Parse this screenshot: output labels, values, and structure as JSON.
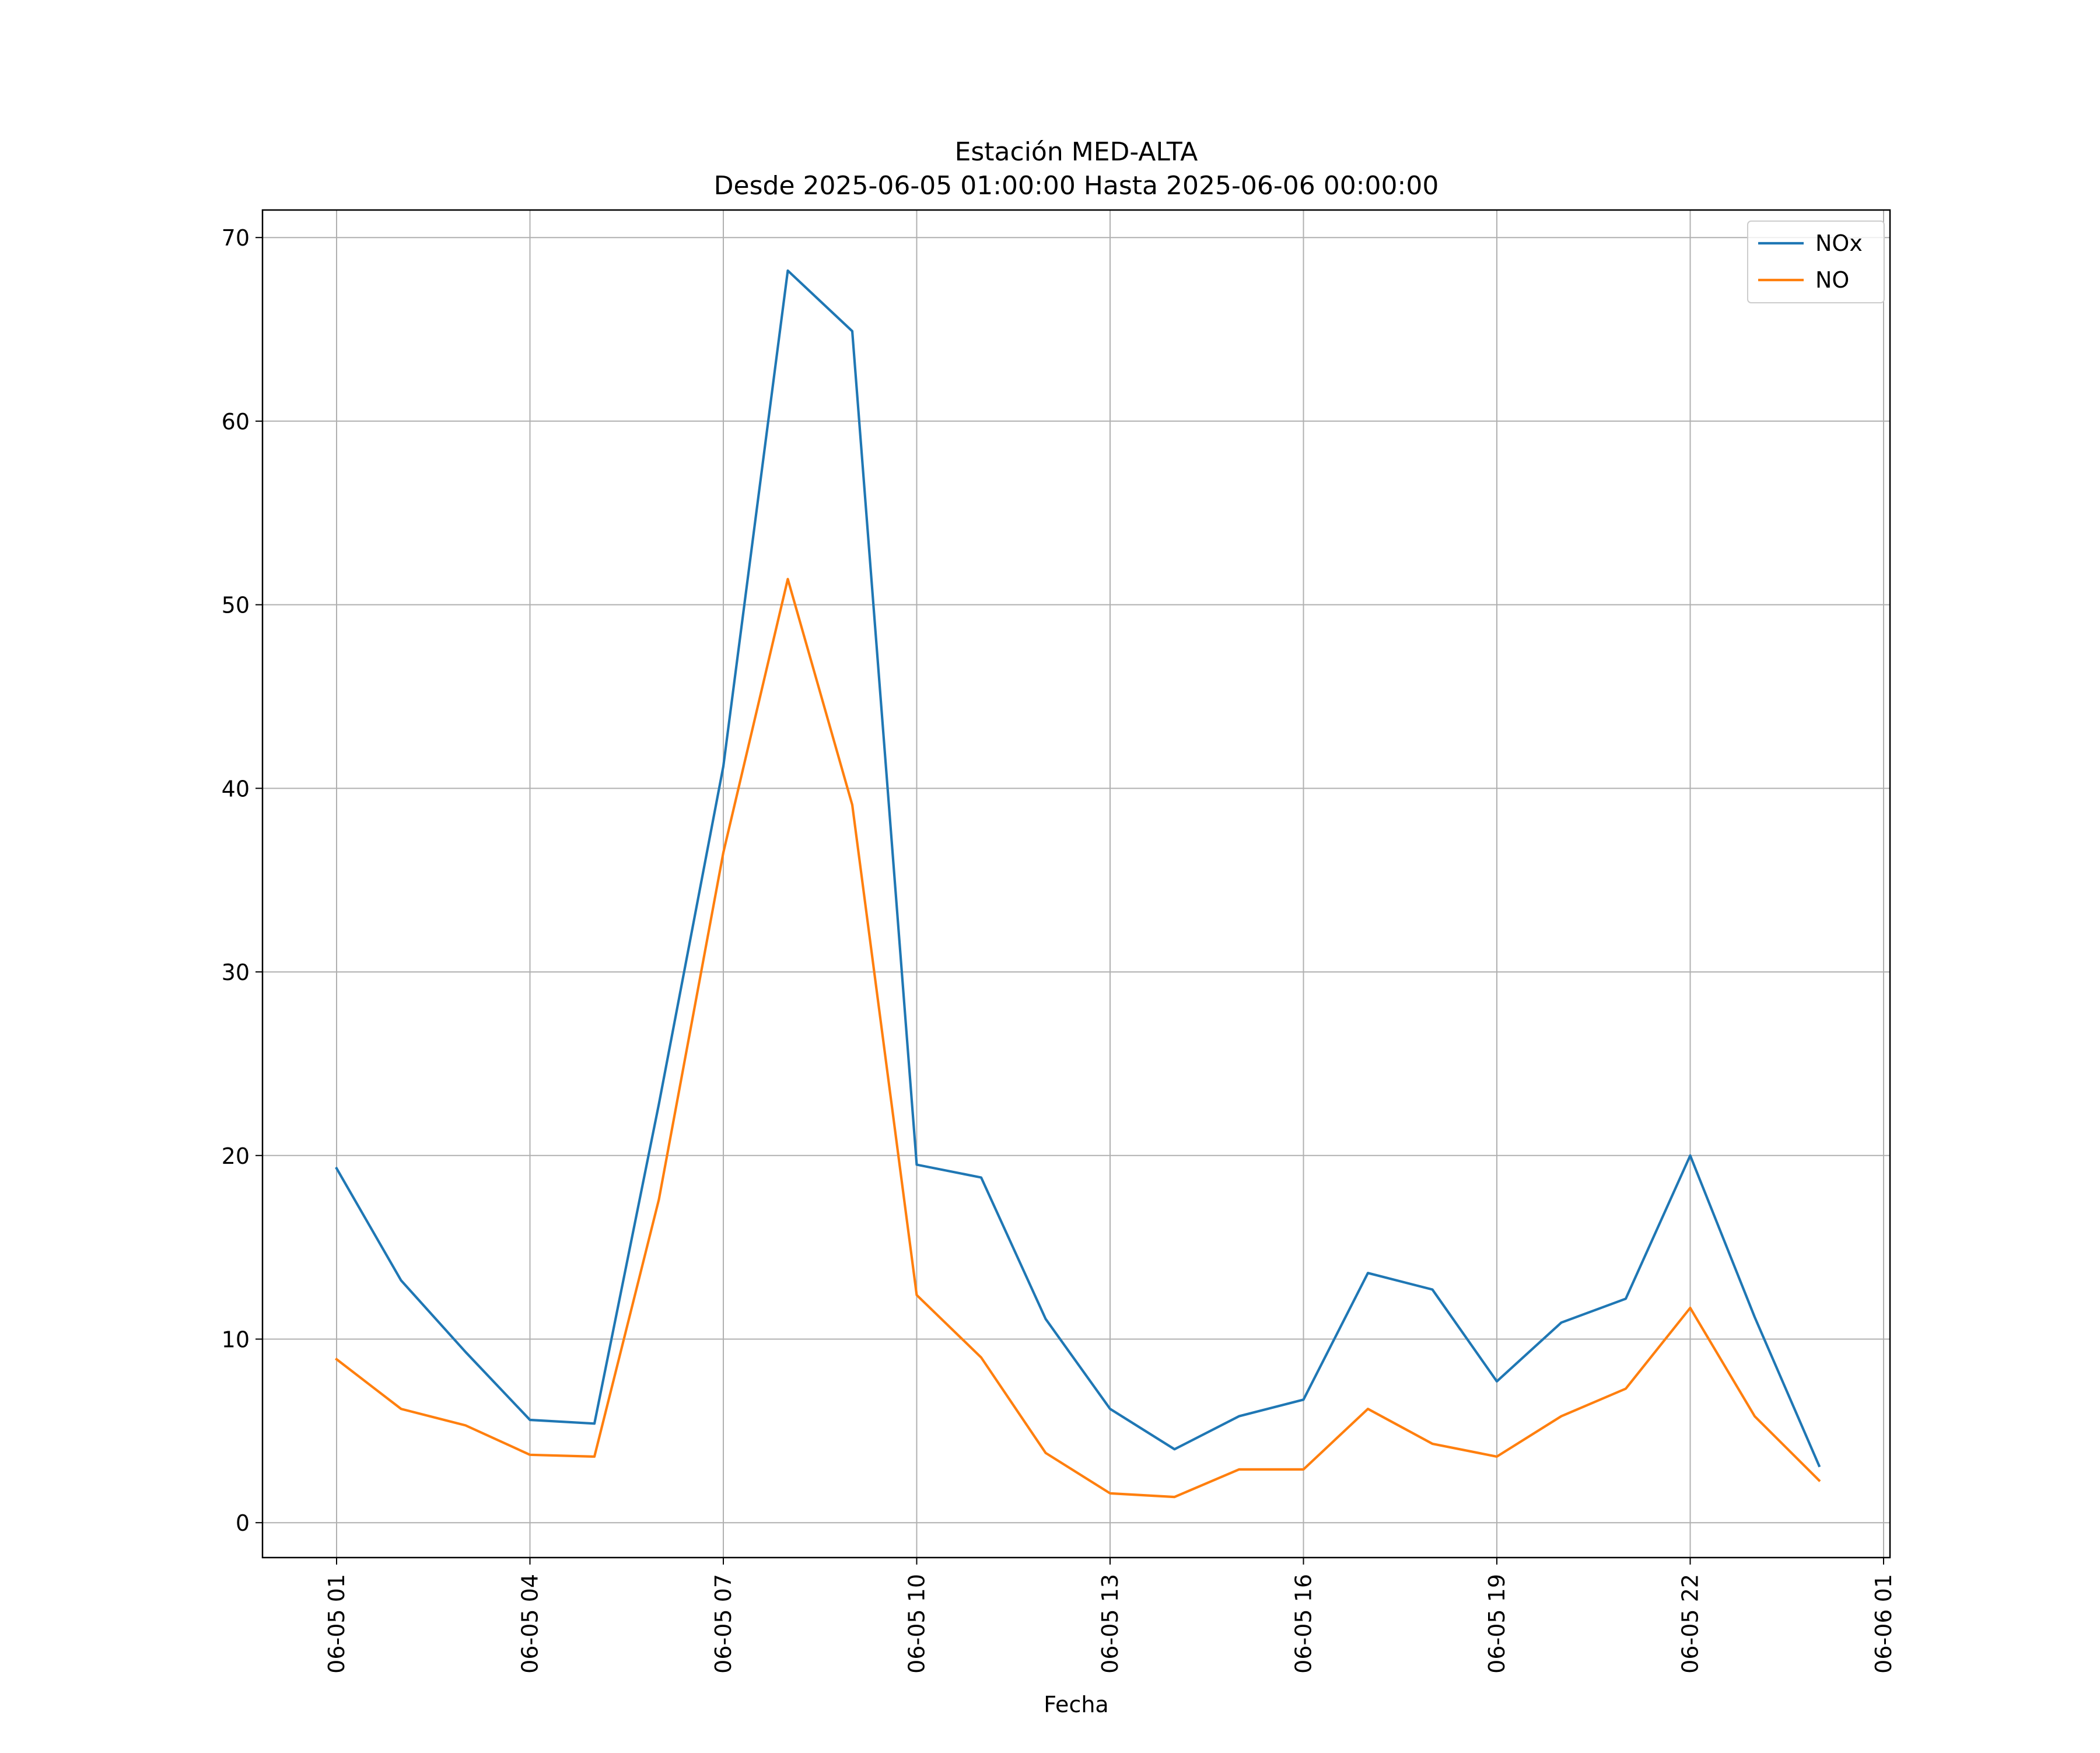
{
  "chart_data": {
    "type": "line",
    "title": "Estación MED-ALTA",
    "subtitle": "Desde 2025-06-05 01:00:00 Hasta 2025-06-06 00:00:00",
    "xlabel": "Fecha",
    "ylabel": "",
    "x": [
      "06-05 01",
      "06-05 02",
      "06-05 03",
      "06-05 04",
      "06-05 05",
      "06-05 06",
      "06-05 07",
      "06-05 08",
      "06-05 09",
      "06-05 10",
      "06-05 11",
      "06-05 12",
      "06-05 13",
      "06-05 14",
      "06-05 15",
      "06-05 16",
      "06-05 17",
      "06-05 18",
      "06-05 19",
      "06-05 20",
      "06-05 21",
      "06-05 22",
      "06-05 23",
      "06-06 00"
    ],
    "x_ticks": [
      "06-05 01",
      "06-05 04",
      "06-05 07",
      "06-05 10",
      "06-05 13",
      "06-05 16",
      "06-05 19",
      "06-05 22",
      "06-06 01"
    ],
    "ylim": [
      -1.9,
      71.5
    ],
    "y_ticks": [
      0,
      10,
      20,
      30,
      40,
      50,
      60,
      70
    ],
    "grid": true,
    "legend_position": "top-right",
    "series": [
      {
        "name": "NOx",
        "color": "#1f77b4",
        "values": [
          19.3,
          13.2,
          9.3,
          5.6,
          5.4,
          22.8,
          41.2,
          68.2,
          64.9,
          19.5,
          18.8,
          11.1,
          6.2,
          4.0,
          5.8,
          6.7,
          13.6,
          12.7,
          7.7,
          10.9,
          12.2,
          20.0,
          11.2,
          3.1
        ]
      },
      {
        "name": "NO",
        "color": "#ff7f0e",
        "values": [
          8.9,
          6.2,
          5.3,
          3.7,
          3.6,
          17.6,
          36.5,
          51.4,
          39.1,
          12.4,
          9.0,
          3.8,
          1.6,
          1.4,
          2.9,
          2.9,
          6.2,
          4.3,
          3.6,
          5.8,
          7.3,
          11.7,
          5.8,
          2.3
        ]
      }
    ]
  }
}
